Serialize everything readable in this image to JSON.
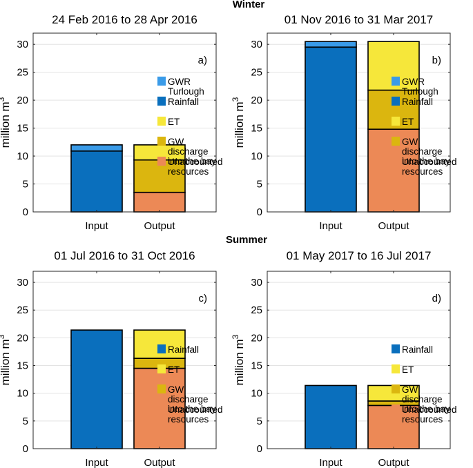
{
  "section_titles": {
    "winter": "Winter",
    "summer": "Summer"
  },
  "colors": {
    "GWR Turlough": "#3a9be8",
    "Rainfall": "#0a6fbd",
    "ET": "#f6e73a",
    "GW discharge into the bay": "#dbb60f",
    "Unaccounted resources": "#ec8956"
  },
  "chart_data": [
    {
      "type": "bar",
      "stacked": true,
      "title": "24 Feb 2016 to 28 Apr 2016",
      "panel_label": "a)",
      "ylabel": "million m",
      "ylabel_superscript": "3",
      "ylim": [
        0,
        32
      ],
      "yticks": [
        0,
        5,
        10,
        15,
        20,
        25,
        30
      ],
      "grid": true,
      "categories": [
        "Input",
        "Output"
      ],
      "series": [
        {
          "name": "Rainfall",
          "bar": "Input",
          "value": 10.9
        },
        {
          "name": "GWR Turlough",
          "bar": "Input",
          "value": 1.1
        },
        {
          "name": "Unaccounted resources",
          "bar": "Output",
          "value": 3.5
        },
        {
          "name": "GW discharge into the bay",
          "bar": "Output",
          "value": 5.8
        },
        {
          "name": "ET",
          "bar": "Output",
          "value": 2.7
        }
      ],
      "legend": [
        {
          "key": "GWR Turlough",
          "lines": [
            "GWR",
            "Turlough"
          ]
        },
        {
          "key": "Rainfall",
          "lines": [
            "Rainfall"
          ]
        },
        {
          "key": "ET",
          "lines": [
            "ET"
          ]
        },
        {
          "key": "GW discharge into the bay",
          "lines": [
            "GW",
            "discharge",
            "into the bay"
          ]
        },
        {
          "key": "Unaccounted resources",
          "lines": [
            "Unaccounted",
            "resources"
          ]
        }
      ]
    },
    {
      "type": "bar",
      "stacked": true,
      "title": "01 Nov 2016 to 31 Mar 2017",
      "panel_label": "b)",
      "ylabel": "million m",
      "ylabel_superscript": "3",
      "ylim": [
        0,
        32
      ],
      "yticks": [
        0,
        5,
        10,
        15,
        20,
        25,
        30
      ],
      "grid": true,
      "categories": [
        "Input",
        "Output"
      ],
      "series": [
        {
          "name": "Rainfall",
          "bar": "Input",
          "value": 29.5
        },
        {
          "name": "GWR Turlough",
          "bar": "Input",
          "value": 1.0
        },
        {
          "name": "Unaccounted resources",
          "bar": "Output",
          "value": 14.8
        },
        {
          "name": "GW discharge into the bay",
          "bar": "Output",
          "value": 7.0
        },
        {
          "name": "ET",
          "bar": "Output",
          "value": 8.7
        }
      ],
      "legend": [
        {
          "key": "GWR Turlough",
          "lines": [
            "GWR",
            "Turlough"
          ]
        },
        {
          "key": "Rainfall",
          "lines": [
            "Rainfall"
          ]
        },
        {
          "key": "ET",
          "lines": [
            "ET"
          ]
        },
        {
          "key": "GW discharge into the bay",
          "lines": [
            "GW",
            "discharge",
            "into the bay"
          ]
        },
        {
          "key": "Unaccounted resources",
          "lines": [
            "Unaccounted",
            "resources"
          ]
        }
      ]
    },
    {
      "type": "bar",
      "stacked": true,
      "title": "01 Jul 2016 to 31 Oct 2016",
      "panel_label": "c)",
      "ylabel": "million m",
      "ylabel_superscript": "3",
      "ylim": [
        0,
        32
      ],
      "yticks": [
        0,
        5,
        10,
        15,
        20,
        25,
        30
      ],
      "grid": true,
      "categories": [
        "Input",
        "Output"
      ],
      "series": [
        {
          "name": "Rainfall",
          "bar": "Input",
          "value": 21.4
        },
        {
          "name": "Unaccounted resources",
          "bar": "Output",
          "value": 14.5
        },
        {
          "name": "GW discharge into the bay",
          "bar": "Output",
          "value": 1.8
        },
        {
          "name": "ET",
          "bar": "Output",
          "value": 5.1
        }
      ],
      "legend": [
        {
          "key": "Rainfall",
          "lines": [
            "Rainfall"
          ]
        },
        {
          "key": "ET",
          "lines": [
            "ET"
          ]
        },
        {
          "key": "GW discharge into the bay",
          "lines": [
            "GW",
            "discharge",
            "into the bay"
          ]
        },
        {
          "key": "Unaccounted resources",
          "lines": [
            "Unaccounted",
            "resources"
          ]
        }
      ]
    },
    {
      "type": "bar",
      "stacked": true,
      "title": "01 May 2017 to 16 Jul 2017",
      "panel_label": "d)",
      "ylabel": "million m",
      "ylabel_superscript": "3",
      "ylim": [
        0,
        32
      ],
      "yticks": [
        0,
        5,
        10,
        15,
        20,
        25,
        30
      ],
      "grid": true,
      "categories": [
        "Input",
        "Output"
      ],
      "series": [
        {
          "name": "Rainfall",
          "bar": "Input",
          "value": 11.4
        },
        {
          "name": "Unaccounted resources",
          "bar": "Output",
          "value": 7.8
        },
        {
          "name": "GW discharge into the bay",
          "bar": "Output",
          "value": 0.8
        },
        {
          "name": "ET",
          "bar": "Output",
          "value": 2.8
        }
      ],
      "legend": [
        {
          "key": "Rainfall",
          "lines": [
            "Rainfall"
          ]
        },
        {
          "key": "ET",
          "lines": [
            "ET"
          ]
        },
        {
          "key": "GW discharge into the bay",
          "lines": [
            "GW",
            "discharge",
            "into the bay"
          ]
        },
        {
          "key": "Unaccounted resources",
          "lines": [
            "Unaccounted",
            "resources"
          ]
        }
      ]
    }
  ]
}
